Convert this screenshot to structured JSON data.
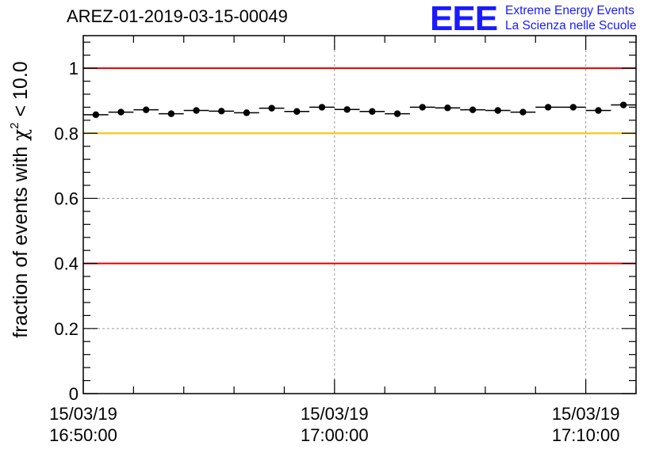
{
  "header": {
    "title": "AREZ-01-2019-03-15-00049",
    "logo_mark": "EEE",
    "logo_line1": "Extreme Energy Events",
    "logo_line2": "La Scienza nelle Scuole"
  },
  "colors": {
    "marker": "#000000",
    "red_line": "#e00000",
    "yellow_line": "#ffc000",
    "grid": "#9a9a9a",
    "logo": "#1a1aff"
  },
  "chart_data": {
    "type": "scatter",
    "title": "AREZ-01-2019-03-15-00049",
    "ylabel_prefix": "fraction of events with ",
    "ylabel_symbol": "χ",
    "ylabel_sup": "2",
    "ylabel_suffix": " < 10.0",
    "xlim": [
      0,
      22
    ],
    "ylim": [
      0,
      1.1
    ],
    "yticks": [
      0,
      0.2,
      0.4,
      0.6,
      0.8,
      1
    ],
    "ytick_labels": [
      "0",
      "0.2",
      "0.4",
      "0.6",
      "0.8",
      "1"
    ],
    "xticks_major": [
      {
        "pos": 0,
        "date": "15/03/19",
        "time": "16:50:00"
      },
      {
        "pos": 10,
        "date": "15/03/19",
        "time": "17:00:00"
      },
      {
        "pos": 20,
        "date": "15/03/19",
        "time": "17:10:00"
      }
    ],
    "grid": true,
    "reference_lines": [
      {
        "y": 1.0,
        "color": "red"
      },
      {
        "y": 0.8,
        "color": "yellow"
      },
      {
        "y": 0.4,
        "color": "red"
      }
    ],
    "bin_width": 1,
    "x": [
      0.5,
      1.5,
      2.5,
      3.5,
      4.5,
      5.5,
      6.5,
      7.5,
      8.5,
      9.5,
      10.5,
      11.5,
      12.5,
      13.5,
      14.5,
      15.5,
      16.5,
      17.5,
      18.5,
      19.5,
      20.5,
      21.5
    ],
    "values": [
      0.857,
      0.865,
      0.872,
      0.86,
      0.87,
      0.868,
      0.863,
      0.877,
      0.867,
      0.88,
      0.873,
      0.867,
      0.86,
      0.88,
      0.878,
      0.872,
      0.87,
      0.865,
      0.88,
      0.88,
      0.87,
      0.887
    ]
  }
}
